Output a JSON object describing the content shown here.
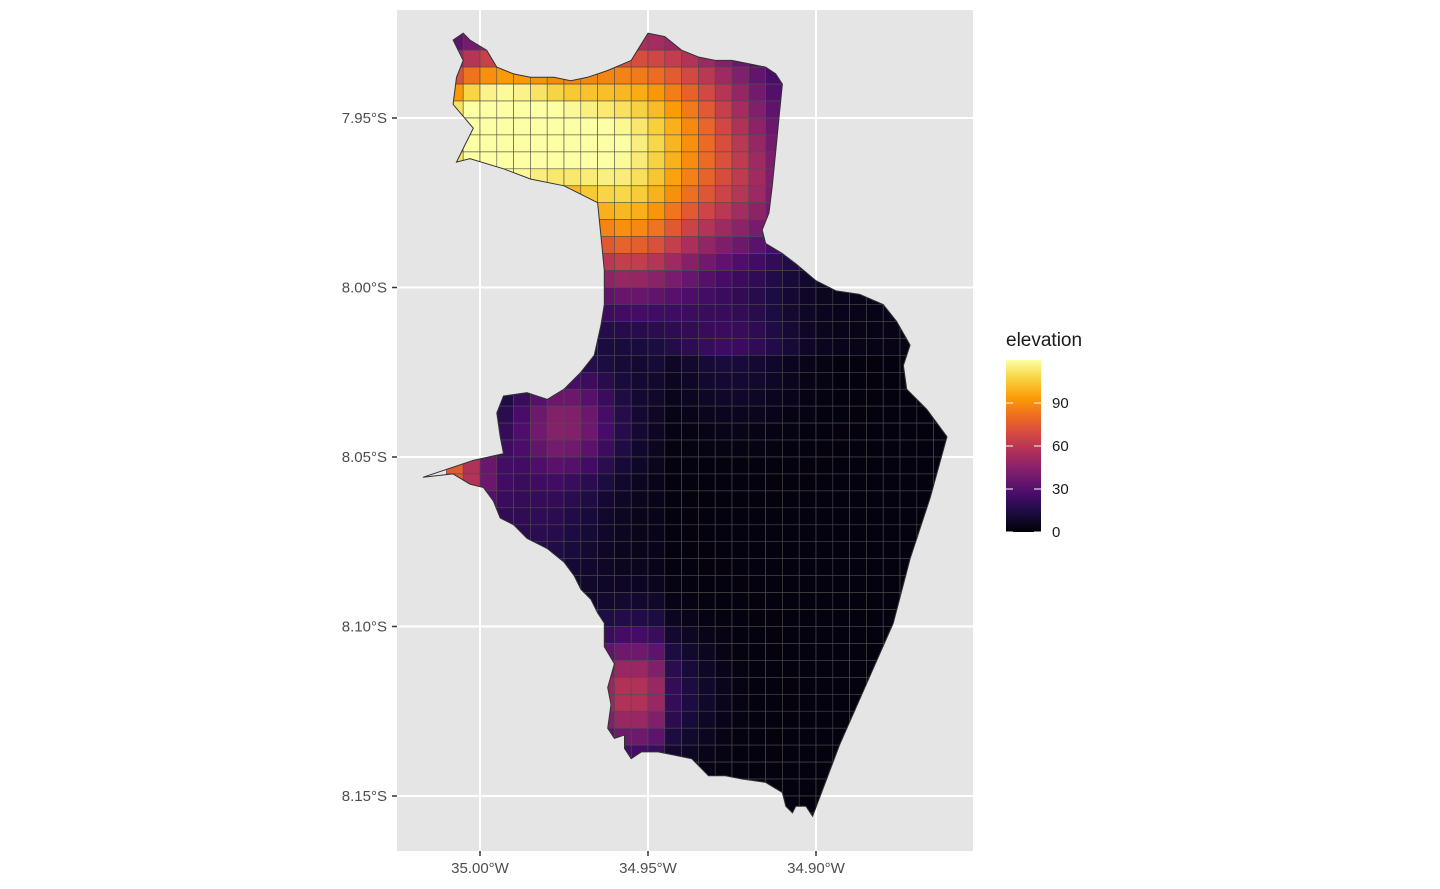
{
  "chart_data": {
    "type": "heatmap",
    "title": "",
    "xlabel": "",
    "ylabel": "",
    "xlim": [
      -35.025,
      -34.853
    ],
    "ylim": [
      -8.166,
      -7.918
    ],
    "x_ticks": [
      {
        "value": -35.0,
        "label": "35.00°W"
      },
      {
        "value": -34.95,
        "label": "34.95°W"
      },
      {
        "value": -34.9,
        "label": "34.90°W"
      }
    ],
    "y_ticks": [
      {
        "value": -7.95,
        "label": "7.95°S"
      },
      {
        "value": -8.0,
        "label": "8.00°S"
      },
      {
        "value": -8.05,
        "label": "8.05°S"
      },
      {
        "value": -8.1,
        "label": "8.10°S"
      },
      {
        "value": -8.15,
        "label": "8.15°S"
      }
    ],
    "grid": true,
    "fill_variable": "elevation",
    "legend": {
      "title": "elevation",
      "position": "right",
      "range": [
        0,
        120
      ],
      "breaks": [
        {
          "value": 0,
          "label": "0"
        },
        {
          "value": 30,
          "label": "30"
        },
        {
          "value": 60,
          "label": "60"
        },
        {
          "value": 90,
          "label": "90"
        }
      ]
    },
    "colormap": [
      "#000004",
      "#1b0c41",
      "#4a0c6b",
      "#781c6d",
      "#a52c60",
      "#cf4446",
      "#ed6925",
      "#fb9b06",
      "#f7d13d",
      "#fcffa4"
    ],
    "boundary_lonlat": [
      [
        -35.008,
        -7.927
      ],
      [
        -35.005,
        -7.925
      ],
      [
        -35.003,
        -7.927
      ],
      [
        -34.998,
        -7.93
      ],
      [
        -34.995,
        -7.935
      ],
      [
        -34.99,
        -7.937
      ],
      [
        -34.985,
        -7.938
      ],
      [
        -34.978,
        -7.938
      ],
      [
        -34.973,
        -7.939
      ],
      [
        -34.968,
        -7.938
      ],
      [
        -34.962,
        -7.936
      ],
      [
        -34.955,
        -7.933
      ],
      [
        -34.95,
        -7.925
      ],
      [
        -34.945,
        -7.926
      ],
      [
        -34.94,
        -7.93
      ],
      [
        -34.935,
        -7.932
      ],
      [
        -34.93,
        -7.933
      ],
      [
        -34.925,
        -7.933
      ],
      [
        -34.92,
        -7.934
      ],
      [
        -34.915,
        -7.935
      ],
      [
        -34.912,
        -7.937
      ],
      [
        -34.91,
        -7.94
      ],
      [
        -34.911,
        -7.95
      ],
      [
        -34.912,
        -7.96
      ],
      [
        -34.913,
        -7.97
      ],
      [
        -34.914,
        -7.978
      ],
      [
        -34.916,
        -7.983
      ],
      [
        -34.915,
        -7.987
      ],
      [
        -34.91,
        -7.99
      ],
      [
        -34.906,
        -7.993
      ],
      [
        -34.9,
        -7.998
      ],
      [
        -34.894,
        -8.001
      ],
      [
        -34.887,
        -8.002
      ],
      [
        -34.88,
        -8.005
      ],
      [
        -34.876,
        -8.01
      ],
      [
        -34.872,
        -8.017
      ],
      [
        -34.874,
        -8.023
      ],
      [
        -34.873,
        -8.03
      ],
      [
        -34.867,
        -8.036
      ],
      [
        -34.861,
        -8.044
      ],
      [
        -34.866,
        -8.062
      ],
      [
        -34.872,
        -8.08
      ],
      [
        -34.877,
        -8.099
      ],
      [
        -34.885,
        -8.117
      ],
      [
        -34.893,
        -8.135
      ],
      [
        -34.901,
        -8.156
      ],
      [
        -34.903,
        -8.153
      ],
      [
        -34.906,
        -8.153
      ],
      [
        -34.907,
        -8.155
      ],
      [
        -34.909,
        -8.153
      ],
      [
        -34.91,
        -8.149
      ],
      [
        -34.915,
        -8.146
      ],
      [
        -34.922,
        -8.145
      ],
      [
        -34.927,
        -8.144
      ],
      [
        -34.932,
        -8.144
      ],
      [
        -34.937,
        -8.139
      ],
      [
        -34.942,
        -8.138
      ],
      [
        -34.947,
        -8.137
      ],
      [
        -34.952,
        -8.137
      ],
      [
        -34.955,
        -8.139
      ],
      [
        -34.957,
        -8.136
      ],
      [
        -34.957,
        -8.132
      ],
      [
        -34.96,
        -8.133
      ],
      [
        -34.962,
        -8.13
      ],
      [
        -34.961,
        -8.123
      ],
      [
        -34.962,
        -8.118
      ],
      [
        -34.96,
        -8.111
      ],
      [
        -34.963,
        -8.106
      ],
      [
        -34.963,
        -8.099
      ],
      [
        -34.965,
        -8.096
      ],
      [
        -34.967,
        -8.092
      ],
      [
        -34.97,
        -8.089
      ],
      [
        -34.972,
        -8.085
      ],
      [
        -34.975,
        -8.081
      ],
      [
        -34.98,
        -8.077
      ],
      [
        -34.986,
        -8.074
      ],
      [
        -34.99,
        -8.07
      ],
      [
        -34.994,
        -8.068
      ],
      [
        -34.996,
        -8.063
      ],
      [
        -34.999,
        -8.059
      ],
      [
        -35.003,
        -8.058
      ],
      [
        -35.008,
        -8.055
      ],
      [
        -35.017,
        -8.056
      ],
      [
        -35.002,
        -8.051
      ],
      [
        -34.993,
        -8.049
      ],
      [
        -34.994,
        -8.044
      ],
      [
        -34.995,
        -8.037
      ],
      [
        -34.993,
        -8.032
      ],
      [
        -34.986,
        -8.031
      ],
      [
        -34.98,
        -8.033
      ],
      [
        -34.975,
        -8.03
      ],
      [
        -34.97,
        -8.025
      ],
      [
        -34.966,
        -8.02
      ],
      [
        -34.964,
        -8.011
      ],
      [
        -34.963,
        -8.005
      ],
      [
        -34.963,
        -7.995
      ],
      [
        -34.964,
        -7.985
      ],
      [
        -34.965,
        -7.975
      ],
      [
        -34.975,
        -7.97
      ],
      [
        -34.985,
        -7.968
      ],
      [
        -34.993,
        -7.965
      ],
      [
        -35.003,
        -7.962
      ],
      [
        -35.007,
        -7.963
      ],
      [
        -35.005,
        -7.959
      ],
      [
        -35.002,
        -7.953
      ],
      [
        -35.008,
        -7.946
      ],
      [
        -35.007,
        -7.938
      ],
      [
        -35.005,
        -7.933
      ]
    ],
    "cells_lonlat_note": "lon_start,lat_start,cell size 0.005 deg; value estimated per cell",
    "cell_size_deg": 0.005,
    "cell_origin": [
      -35.01,
      -7.925
    ]
  }
}
